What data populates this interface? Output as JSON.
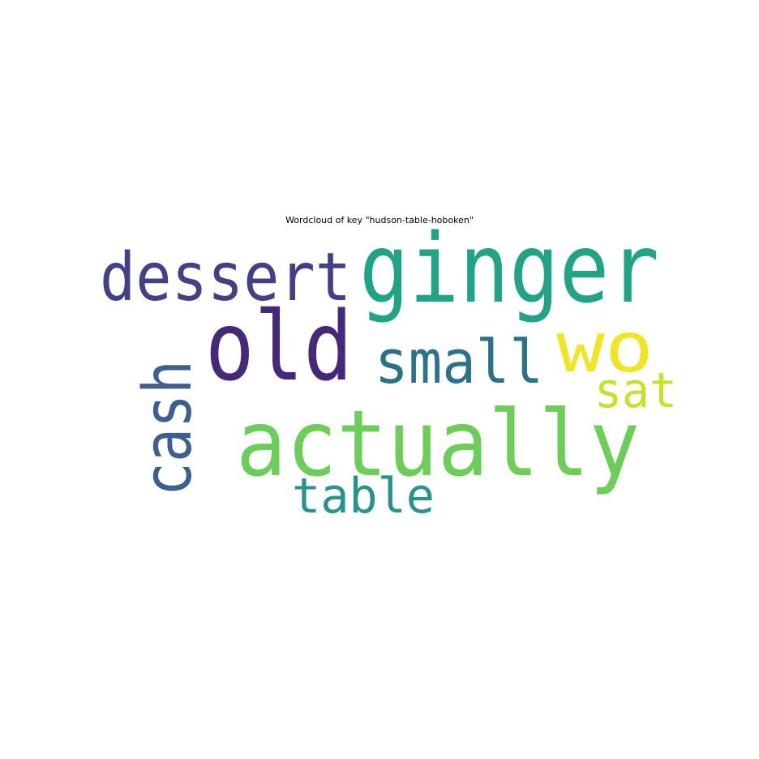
{
  "chart_data": {
    "type": "wordcloud",
    "title": "Wordcloud of key \"hudson-table-hoboken\"",
    "background": "#ffffff",
    "colormap": "viridis",
    "words": [
      {
        "text": "ginger",
        "color": "#21a386",
        "orientation": "horizontal"
      },
      {
        "text": "dessert",
        "color": "#424086",
        "orientation": "horizontal"
      },
      {
        "text": "old",
        "color": "#44287a",
        "orientation": "horizontal"
      },
      {
        "text": "wo",
        "color": "#f0e524",
        "orientation": "horizontal"
      },
      {
        "text": "small",
        "color": "#2b7189",
        "orientation": "horizontal"
      },
      {
        "text": "cash",
        "color": "#3d5f8f",
        "orientation": "vertical"
      },
      {
        "text": "sat",
        "color": "#c7e02c",
        "orientation": "horizontal"
      },
      {
        "text": "actually",
        "color": "#6dcd59",
        "orientation": "horizontal"
      },
      {
        "text": "table",
        "color": "#26948c",
        "orientation": "horizontal"
      }
    ]
  }
}
